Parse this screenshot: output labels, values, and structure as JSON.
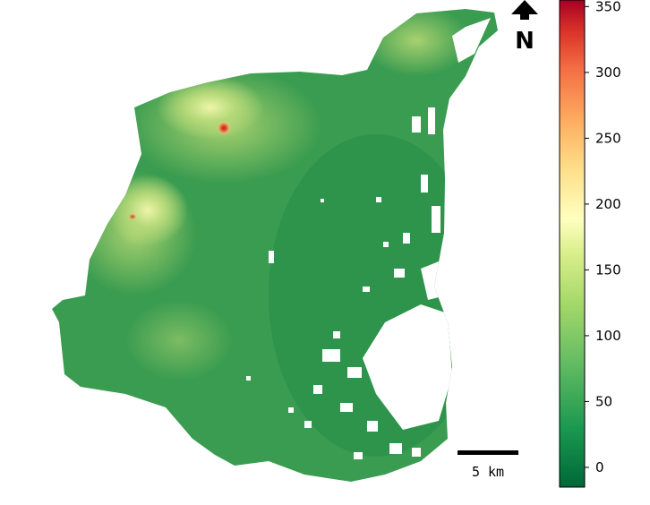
{
  "map": {
    "north_arrow": {
      "label": "N"
    },
    "scale_bar": {
      "label": "5 km"
    },
    "colorbar": {
      "colormap": "RdYlGn_r",
      "range": [
        -15,
        355
      ],
      "ticks": [
        {
          "value": 0,
          "label": "0"
        },
        {
          "value": 50,
          "label": "50"
        },
        {
          "value": 100,
          "label": "100"
        },
        {
          "value": 150,
          "label": "150"
        },
        {
          "value": 200,
          "label": "200"
        },
        {
          "value": 250,
          "label": "250"
        },
        {
          "value": 300,
          "label": "300"
        },
        {
          "value": 350,
          "label": "350"
        }
      ],
      "colors": {
        "low": "#006837",
        "mid": "#ffffbf",
        "high": "#a50026"
      }
    },
    "terrain_colors": {
      "lowland": "#2f9a4e",
      "plain": "#4aa955",
      "hills": "#8cc464",
      "uplands": "#d6ec93",
      "summit": "#d73027"
    }
  }
}
